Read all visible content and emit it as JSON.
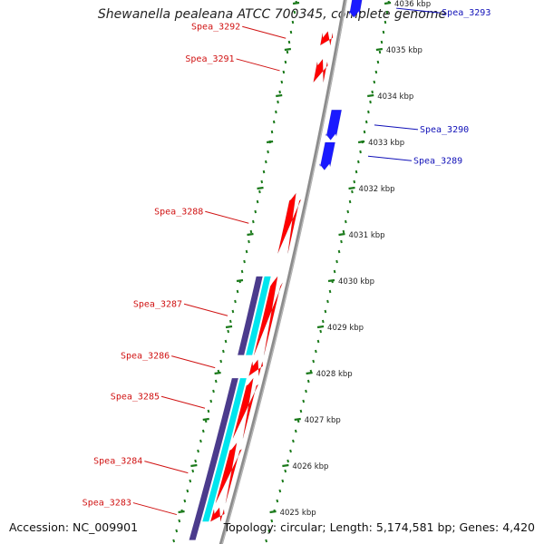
{
  "title": "Shewanella pealeana ATCC 700345, complete genome",
  "footer": {
    "accession": "Accession: NC_009901",
    "summary": "Topology: circular; Length: 5,174,581 bp; Genes: 4,420"
  },
  "colors": {
    "reverse_gene": "#ff0000",
    "forward_gene": "#1a1aff",
    "cds_cyan": "#00e5ee",
    "cds_purple": "#4b3b8c",
    "backbone": "#8c8c8c",
    "tick": "#1b7a1b",
    "reverse_label": "#d01212",
    "forward_label": "#1010b8"
  },
  "scale": {
    "unit": "kbp",
    "ticks": [
      {
        "kbp": 4025,
        "label": "4025 kbp"
      },
      {
        "kbp": 4026,
        "label": "4026 kbp"
      },
      {
        "kbp": 4027,
        "label": "4027 kbp"
      },
      {
        "kbp": 4028,
        "label": "4028 kbp"
      },
      {
        "kbp": 4029,
        "label": "4029 kbp"
      },
      {
        "kbp": 4030,
        "label": "4030 kbp"
      },
      {
        "kbp": 4031,
        "label": "4031 kbp"
      },
      {
        "kbp": 4032,
        "label": "4032 kbp"
      },
      {
        "kbp": 4033,
        "label": "4033 kbp"
      },
      {
        "kbp": 4034,
        "label": "4034 kbp"
      },
      {
        "kbp": 4035,
        "label": "4035 kbp"
      },
      {
        "kbp": 4036,
        "label": "4036 kbp"
      }
    ]
  },
  "genes": [
    {
      "id": "g3283",
      "label": "Spea_3283",
      "strand": "reverse",
      "start": 4024.8,
      "end": 4025.1
    },
    {
      "id": "g3284",
      "label": "Spea_3284",
      "strand": "reverse",
      "start": 4025.2,
      "end": 4026.5
    },
    {
      "id": "g3285",
      "label": "Spea_3285",
      "strand": "reverse",
      "start": 4026.6,
      "end": 4027.9
    },
    {
      "id": "g3286",
      "label": "Spea_3286",
      "strand": "reverse",
      "start": 4027.95,
      "end": 4028.3
    },
    {
      "id": "g3287",
      "label": "Spea_3287",
      "strand": "reverse",
      "start": 4028.4,
      "end": 4030.1
    },
    {
      "id": "g3288",
      "label": "Spea_3288",
      "strand": "reverse",
      "start": 4030.6,
      "end": 4031.9
    },
    {
      "id": "g3289",
      "label": "Spea_3289",
      "strand": "forward",
      "start": 4032.4,
      "end": 4033.0
    },
    {
      "id": "g3290",
      "label": "Spea_3290",
      "strand": "forward",
      "start": 4033.05,
      "end": 4033.7
    },
    {
      "id": "g3291",
      "label": "Spea_3291",
      "strand": "reverse",
      "start": 4034.3,
      "end": 4034.8
    },
    {
      "id": "g3292",
      "label": "Spea_3292",
      "strand": "reverse",
      "start": 4035.1,
      "end": 4035.4
    },
    {
      "id": "g3293",
      "label": "Spea_3293",
      "strand": "forward",
      "start": 4035.7,
      "end": 4036.1
    }
  ],
  "cds_features": [
    {
      "kind": "cyan",
      "start": 4024.8,
      "end": 4027.9
    },
    {
      "kind": "cyan",
      "start": 4028.4,
      "end": 4030.1
    },
    {
      "kind": "purple",
      "start": 4024.4,
      "end": 4027.9
    },
    {
      "kind": "purple",
      "start": 4028.4,
      "end": 4030.1
    }
  ]
}
